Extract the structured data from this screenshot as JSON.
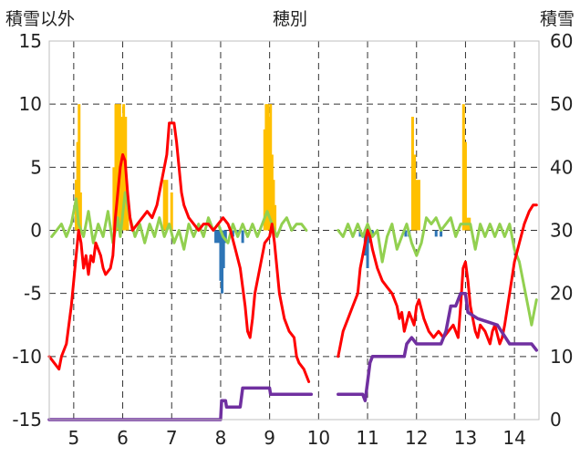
{
  "chart_data": {
    "type": "line",
    "title": "穂別",
    "ylabel_left": "積雪以外",
    "ylabel_right": "積雪",
    "x_range": [
      4.5,
      14.5
    ],
    "x_ticks": [
      5,
      6,
      7,
      8,
      9,
      10,
      11,
      12,
      13,
      14
    ],
    "y_left": {
      "range": [
        -15,
        15
      ],
      "ticks": [
        -15,
        -10,
        -5,
        0,
        5,
        10,
        15
      ]
    },
    "y_right": {
      "range": [
        0,
        60
      ],
      "ticks": [
        0,
        10,
        20,
        30,
        40,
        50,
        60
      ]
    },
    "grid": {
      "vertical": "dashed",
      "horizontal": "dashed"
    },
    "colors": {
      "precip_positive": "#ffc000",
      "precip_negative": "#2e75b6",
      "temperature": "#ff0000",
      "green_series": "#92d050",
      "snow_depth": "#7030a0"
    },
    "series": [
      {
        "kind": "bar",
        "axis": "left",
        "color": "#ffc000",
        "bar_width": 0.025,
        "points": [
          [
            5.05,
            4
          ],
          [
            5.08,
            7
          ],
          [
            5.11,
            10
          ],
          [
            5.14,
            3
          ],
          [
            5.82,
            5
          ],
          [
            5.86,
            10
          ],
          [
            5.9,
            10
          ],
          [
            5.94,
            10
          ],
          [
            5.98,
            9
          ],
          [
            6.02,
            10
          ],
          [
            6.06,
            9
          ],
          [
            6.1,
            3
          ],
          [
            6.85,
            4
          ],
          [
            6.9,
            4
          ],
          [
            7.0,
            3
          ],
          [
            8.9,
            8
          ],
          [
            8.93,
            10
          ],
          [
            8.96,
            10
          ],
          [
            8.99,
            9
          ],
          [
            9.02,
            10
          ],
          [
            9.05,
            6
          ],
          [
            9.08,
            4
          ],
          [
            9.11,
            2
          ],
          [
            11.92,
            9
          ],
          [
            11.96,
            6
          ],
          [
            12.0,
            4
          ],
          [
            12.05,
            4
          ],
          [
            12.96,
            10
          ],
          [
            13.0,
            7
          ],
          [
            13.04,
            1
          ],
          [
            13.08,
            1
          ]
        ]
      },
      {
        "kind": "bar",
        "axis": "left",
        "color": "#2e75b6",
        "bar_width": 0.025,
        "points": [
          [
            7.9,
            -1
          ],
          [
            7.95,
            -1
          ],
          [
            8.0,
            -4
          ],
          [
            8.03,
            -5
          ],
          [
            8.06,
            -3
          ],
          [
            8.1,
            -1
          ],
          [
            8.25,
            -0.5
          ],
          [
            8.35,
            -0.5
          ],
          [
            8.45,
            -1
          ],
          [
            10.85,
            -0.5
          ],
          [
            10.95,
            -2
          ],
          [
            11.0,
            -3
          ],
          [
            11.05,
            -1
          ],
          [
            11.1,
            -0.5
          ],
          [
            11.78,
            -0.5
          ],
          [
            11.85,
            -0.5
          ],
          [
            12.4,
            -0.5
          ],
          [
            12.5,
            -0.5
          ]
        ]
      },
      {
        "kind": "line",
        "axis": "left",
        "color": "#92d050",
        "points": [
          [
            4.55,
            -0.5
          ],
          [
            4.65,
            0
          ],
          [
            4.75,
            0.5
          ],
          [
            4.85,
            -0.5
          ],
          [
            4.95,
            0.5
          ],
          [
            5.05,
            2.5
          ],
          [
            5.1,
            0.5
          ],
          [
            5.2,
            -0.5
          ],
          [
            5.3,
            1.5
          ],
          [
            5.4,
            -1
          ],
          [
            5.5,
            0.5
          ],
          [
            5.6,
            -0.5
          ],
          [
            5.7,
            1.5
          ],
          [
            5.8,
            -1
          ],
          [
            5.9,
            1
          ],
          [
            5.95,
            -0.5
          ],
          [
            6.05,
            3
          ],
          [
            6.15,
            1
          ],
          [
            6.25,
            -0.5
          ],
          [
            6.35,
            0.5
          ],
          [
            6.45,
            -1
          ],
          [
            6.55,
            0.5
          ],
          [
            6.65,
            -0.5
          ],
          [
            6.75,
            1
          ],
          [
            6.85,
            -0.5
          ],
          [
            6.95,
            0.5
          ],
          [
            7.05,
            -1
          ],
          [
            7.15,
            0
          ],
          [
            7.25,
            -1.5
          ],
          [
            7.35,
            0.5
          ],
          [
            7.45,
            -0.5
          ],
          [
            7.55,
            0.5
          ],
          [
            7.65,
            -0.5
          ],
          [
            7.75,
            1
          ],
          [
            7.85,
            0
          ],
          [
            7.95,
            0.5
          ],
          [
            8.05,
            -0.5
          ],
          [
            8.15,
            -1
          ],
          [
            8.25,
            0.5
          ],
          [
            8.35,
            -0.5
          ],
          [
            8.45,
            0.5
          ],
          [
            8.55,
            -0.5
          ],
          [
            8.65,
            0.5
          ],
          [
            8.75,
            -0.5
          ],
          [
            8.85,
            0.5
          ],
          [
            8.95,
            1.5
          ],
          [
            9.05,
            0.5
          ],
          [
            9.15,
            -0.5
          ],
          [
            9.25,
            0.5
          ],
          [
            9.35,
            1
          ],
          [
            9.45,
            0
          ],
          [
            9.55,
            0.5
          ],
          [
            9.65,
            0.5
          ],
          [
            9.75,
            0
          ],
          null,
          [
            10.4,
            0
          ],
          [
            10.5,
            -0.5
          ],
          [
            10.6,
            0.5
          ],
          [
            10.7,
            -0.5
          ],
          [
            10.8,
            0.5
          ],
          [
            10.9,
            -0.5
          ],
          [
            11.0,
            0.5
          ],
          [
            11.1,
            -0.5
          ],
          [
            11.2,
            0
          ],
          [
            11.3,
            -2.5
          ],
          [
            11.4,
            -0.5
          ],
          [
            11.5,
            0.5
          ],
          [
            11.6,
            -1.5
          ],
          [
            11.7,
            -0.5
          ],
          [
            11.8,
            0.5
          ],
          [
            11.9,
            -1
          ],
          [
            12.0,
            -2
          ],
          [
            12.1,
            -1
          ],
          [
            12.2,
            1
          ],
          [
            12.3,
            0.5
          ],
          [
            12.4,
            1
          ],
          [
            12.5,
            0
          ],
          [
            12.6,
            0.5
          ],
          [
            12.7,
            1
          ],
          [
            12.8,
            -0.5
          ],
          [
            12.9,
            0.5
          ],
          [
            13.0,
            0.5
          ],
          [
            13.1,
            0.5
          ],
          [
            13.2,
            -1.5
          ],
          [
            13.3,
            0.5
          ],
          [
            13.4,
            -0.5
          ],
          [
            13.5,
            0.5
          ],
          [
            13.6,
            -0.5
          ],
          [
            13.7,
            0.5
          ],
          [
            13.8,
            -0.5
          ],
          [
            13.9,
            0.5
          ],
          [
            14.0,
            -1.5
          ],
          [
            14.1,
            -2.5
          ],
          [
            14.2,
            -4.5
          ],
          [
            14.3,
            -6.5
          ],
          [
            14.35,
            -7.5
          ],
          [
            14.4,
            -6.5
          ],
          [
            14.45,
            -5.5
          ]
        ]
      },
      {
        "kind": "line",
        "axis": "left",
        "color": "#ff0000",
        "points": [
          [
            4.5,
            -10
          ],
          [
            4.6,
            -10.5
          ],
          [
            4.7,
            -11
          ],
          [
            4.75,
            -10
          ],
          [
            4.85,
            -9
          ],
          [
            4.95,
            -6
          ],
          [
            5.05,
            -2
          ],
          [
            5.1,
            0
          ],
          [
            5.15,
            -1
          ],
          [
            5.2,
            -3
          ],
          [
            5.25,
            -2
          ],
          [
            5.3,
            -3.5
          ],
          [
            5.35,
            -2
          ],
          [
            5.4,
            -2.5
          ],
          [
            5.45,
            -1
          ],
          [
            5.55,
            -2
          ],
          [
            5.6,
            -3
          ],
          [
            5.65,
            -3.5
          ],
          [
            5.75,
            -3
          ],
          [
            5.8,
            -2
          ],
          [
            5.85,
            1
          ],
          [
            5.9,
            3
          ],
          [
            5.95,
            5
          ],
          [
            6.0,
            6
          ],
          [
            6.05,
            5.5
          ],
          [
            6.1,
            3
          ],
          [
            6.15,
            1
          ],
          [
            6.2,
            0
          ],
          [
            6.3,
            0.5
          ],
          [
            6.4,
            1
          ],
          [
            6.5,
            1.5
          ],
          [
            6.6,
            1
          ],
          [
            6.7,
            2
          ],
          [
            6.8,
            4
          ],
          [
            6.9,
            6
          ],
          [
            6.95,
            8.5
          ],
          [
            7.05,
            8.5
          ],
          [
            7.1,
            7
          ],
          [
            7.15,
            5
          ],
          [
            7.2,
            3
          ],
          [
            7.25,
            2
          ],
          [
            7.35,
            1
          ],
          [
            7.45,
            0.5
          ],
          [
            7.55,
            0
          ],
          [
            7.65,
            0.5
          ],
          [
            7.75,
            0.5
          ],
          [
            7.85,
            0
          ],
          [
            7.95,
            0.5
          ],
          [
            8.05,
            1
          ],
          [
            8.15,
            0.5
          ],
          [
            8.2,
            0
          ],
          [
            8.3,
            -1.5
          ],
          [
            8.4,
            -3
          ],
          [
            8.5,
            -6
          ],
          [
            8.55,
            -8
          ],
          [
            8.6,
            -8.5
          ],
          [
            8.65,
            -7
          ],
          [
            8.7,
            -5
          ],
          [
            8.8,
            -3
          ],
          [
            8.9,
            -1
          ],
          [
            9.0,
            -0.5
          ],
          [
            9.05,
            0.5
          ],
          [
            9.1,
            -1
          ],
          [
            9.15,
            -3
          ],
          [
            9.2,
            -5
          ],
          [
            9.3,
            -7
          ],
          [
            9.4,
            -8
          ],
          [
            9.5,
            -8.5
          ],
          [
            9.55,
            -10
          ],
          [
            9.6,
            -10.5
          ],
          [
            9.7,
            -11
          ],
          [
            9.8,
            -12
          ],
          null,
          [
            10.4,
            -10
          ],
          [
            10.5,
            -8
          ],
          [
            10.6,
            -7
          ],
          [
            10.7,
            -6
          ],
          [
            10.8,
            -5
          ],
          [
            10.85,
            -3
          ],
          [
            10.9,
            -2
          ],
          [
            10.95,
            -1
          ],
          [
            11.0,
            0
          ],
          [
            11.05,
            -0.5
          ],
          [
            11.1,
            -1.5
          ],
          [
            11.2,
            -3
          ],
          [
            11.3,
            -4
          ],
          [
            11.4,
            -4.5
          ],
          [
            11.5,
            -5
          ],
          [
            11.55,
            -5.5
          ],
          [
            11.6,
            -6
          ],
          [
            11.65,
            -7
          ],
          [
            11.7,
            -6.5
          ],
          [
            11.75,
            -8
          ],
          [
            11.85,
            -6.5
          ],
          [
            11.95,
            -7.5
          ],
          [
            12.0,
            -6
          ],
          [
            12.05,
            -5.5
          ],
          [
            12.15,
            -7
          ],
          [
            12.25,
            -8
          ],
          [
            12.35,
            -8.5
          ],
          [
            12.45,
            -8
          ],
          [
            12.55,
            -8.5
          ],
          [
            12.65,
            -8
          ],
          [
            12.75,
            -7.5
          ],
          [
            12.85,
            -8.5
          ],
          [
            12.9,
            -6
          ],
          [
            12.95,
            -3
          ],
          [
            13.0,
            -2.5
          ],
          [
            13.05,
            -4
          ],
          [
            13.1,
            -6
          ],
          [
            13.2,
            -8
          ],
          [
            13.25,
            -8.5
          ],
          [
            13.3,
            -7.5
          ],
          [
            13.4,
            -8
          ],
          [
            13.5,
            -9
          ],
          [
            13.55,
            -8
          ],
          [
            13.6,
            -7.5
          ],
          [
            13.7,
            -9
          ],
          [
            13.75,
            -8.5
          ],
          [
            13.8,
            -7.5
          ],
          [
            13.9,
            -5
          ],
          [
            14.0,
            -2.5
          ],
          [
            14.1,
            -1
          ],
          [
            14.2,
            0.5
          ],
          [
            14.3,
            1.5
          ],
          [
            14.38,
            2
          ],
          [
            14.45,
            2
          ]
        ]
      },
      {
        "kind": "line",
        "axis": "right",
        "color": "#7030a0",
        "points": [
          [
            4.5,
            0
          ],
          [
            8.0,
            0
          ],
          [
            8.02,
            3
          ],
          [
            8.1,
            3
          ],
          [
            8.12,
            2
          ],
          [
            8.4,
            2
          ],
          [
            8.45,
            5
          ],
          [
            9.0,
            5
          ],
          [
            9.02,
            4
          ],
          [
            9.85,
            4
          ],
          null,
          [
            10.4,
            4
          ],
          [
            10.9,
            4
          ],
          [
            10.95,
            3
          ],
          [
            11.0,
            6
          ],
          [
            11.05,
            9
          ],
          [
            11.1,
            10
          ],
          [
            11.75,
            10
          ],
          [
            11.8,
            12
          ],
          [
            11.9,
            13
          ],
          [
            12.0,
            12
          ],
          [
            12.5,
            12
          ],
          [
            12.6,
            14
          ],
          [
            12.7,
            18
          ],
          [
            12.8,
            18
          ],
          [
            12.9,
            20
          ],
          [
            13.0,
            20
          ],
          [
            13.05,
            17
          ],
          [
            13.25,
            16
          ],
          [
            13.65,
            15
          ],
          [
            13.9,
            12
          ],
          [
            14.35,
            12
          ],
          [
            14.45,
            11
          ]
        ]
      }
    ]
  }
}
